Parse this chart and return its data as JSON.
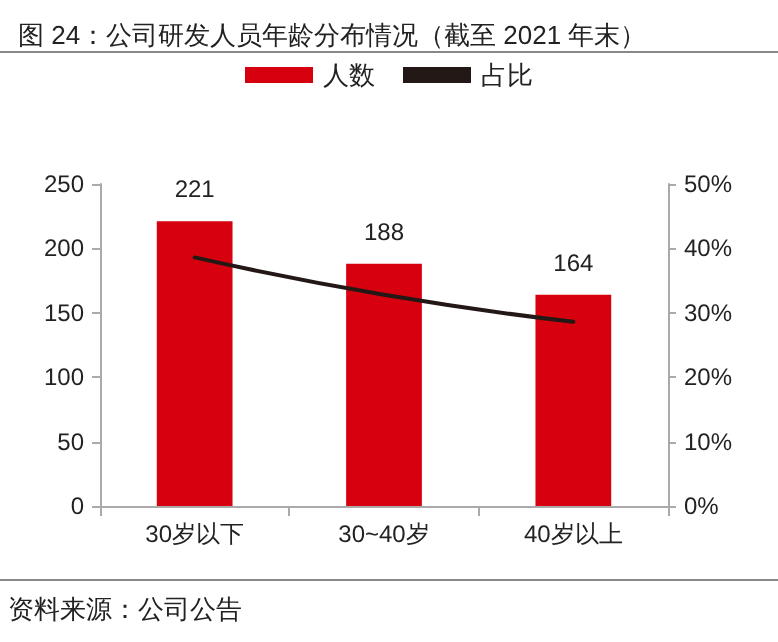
{
  "chart_data": {
    "type": "bar",
    "title": "图 24：公司研发人员年龄分布情况（截至 2021 年末）",
    "annotations": [
      "资料来源：公司公告"
    ],
    "categories": [
      "30岁以下",
      "30~40岁",
      "40岁以上"
    ],
    "series": [
      {
        "name": "人数",
        "color": "#d7000f",
        "values": [
          221,
          188,
          164
        ],
        "value_labels": [
          "221",
          "188",
          "164"
        ]
      },
      {
        "name": "占比",
        "type": "line",
        "axis": "y2",
        "color": "#231815",
        "values": [
          38.6,
          32.8,
          28.6
        ]
      }
    ],
    "ylim": [
      0,
      250
    ],
    "yticks": [
      0,
      50,
      100,
      150,
      200,
      250
    ],
    "y2lim": [
      0,
      50
    ],
    "y2ticks": [
      {
        "value": 0,
        "label": "0%"
      },
      {
        "value": 10,
        "label": "10%"
      },
      {
        "value": 20,
        "label": "20%"
      },
      {
        "value": 30,
        "label": "30%"
      },
      {
        "value": 40,
        "label": "40%"
      },
      {
        "value": 50,
        "label": "50%"
      }
    ],
    "grid": false,
    "legend": "top",
    "marker": "none",
    "line_style": "solid"
  }
}
